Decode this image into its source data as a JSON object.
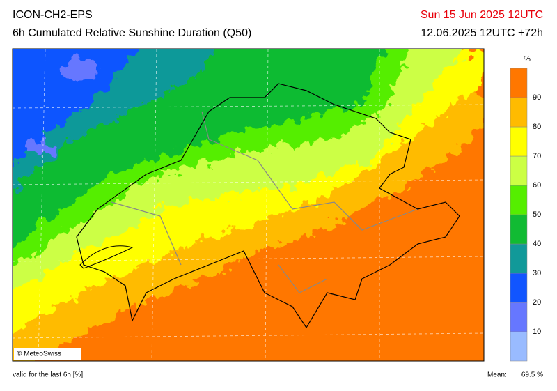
{
  "header": {
    "model": "ICON-CH2-EPS",
    "title": "6h Cumulated Relative Sunshine Duration (Q50)",
    "valid_time": "Sun 15 Jun 2025 12UTC",
    "run": "12.06.2025 12UTC +72h"
  },
  "colorbar": {
    "unit": "%",
    "ticks": [
      10,
      20,
      30,
      40,
      50,
      60,
      70,
      80,
      90
    ],
    "colors": [
      "#99bbff",
      "#6677ff",
      "#1155ff",
      "#119999",
      "#11bb33",
      "#55ee00",
      "#ccff44",
      "#ffff00",
      "#ffbb00",
      "#ff7700"
    ]
  },
  "map": {
    "copyright": "© MeteoSwiss"
  },
  "footer": {
    "note": "valid for the last 6h [%]",
    "mean_label": "Mean:",
    "mean_value": "69.5 %"
  }
}
